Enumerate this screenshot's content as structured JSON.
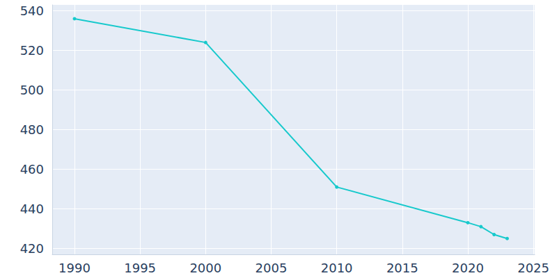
{
  "chart_data": {
    "type": "line",
    "x": [
      1990,
      2000,
      2010,
      2020,
      2021,
      2022,
      2023
    ],
    "values": [
      536,
      524,
      451,
      433,
      431,
      427,
      425
    ],
    "color": "#17c9cc",
    "marker": "circle",
    "xlim": [
      1988.3,
      2025.1
    ],
    "xticks": [
      1990,
      1995,
      2000,
      2005,
      2010,
      2015,
      2020,
      2025
    ],
    "ylim": [
      417,
      543
    ],
    "yticks": [
      420,
      440,
      460,
      480,
      500,
      520,
      540
    ],
    "grid": true
  }
}
